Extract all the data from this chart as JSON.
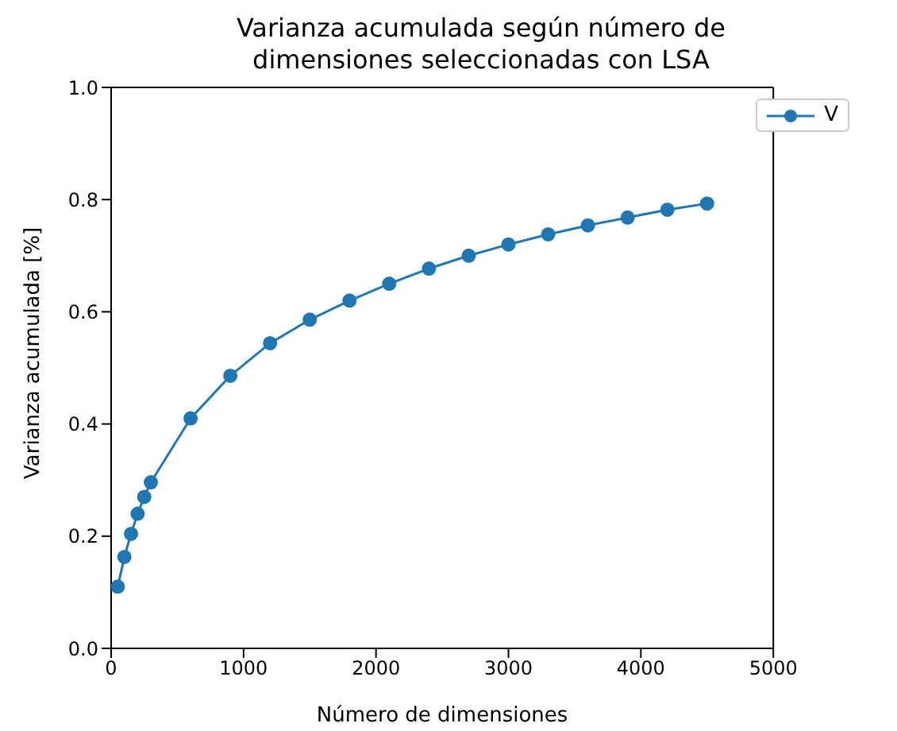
{
  "chart_data": {
    "type": "line",
    "title": "Varianza acumulada según número de\ndimensiones seleccionadas con LSA",
    "xlabel": "Número de dimensiones",
    "ylabel": "Varianza acumulada [%]",
    "x": [
      50,
      100,
      150,
      200,
      250,
      300,
      600,
      900,
      1200,
      1500,
      1800,
      2100,
      2400,
      2700,
      3000,
      3300,
      3600,
      3900,
      4200,
      4500
    ],
    "series": [
      {
        "name": "V",
        "color": "#1f77b4",
        "values": [
          0.11,
          0.163,
          0.204,
          0.24,
          0.27,
          0.296,
          0.41,
          0.486,
          0.544,
          0.586,
          0.62,
          0.65,
          0.677,
          0.7,
          0.72,
          0.738,
          0.754,
          0.768,
          0.782,
          0.793
        ]
      }
    ],
    "xlim": [
      0,
      5000
    ],
    "xticks": [
      0,
      1000,
      2000,
      3000,
      4000,
      5000
    ],
    "ylim": [
      0,
      1
    ],
    "yticks": [
      {
        "value": 0,
        "label": "0.0"
      },
      0.2,
      0.4,
      0.6,
      0.8,
      {
        "value": 1,
        "label": "1.0"
      }
    ],
    "legend": "top right",
    "marker": "circle",
    "line_style": "solid",
    "grid": false
  }
}
